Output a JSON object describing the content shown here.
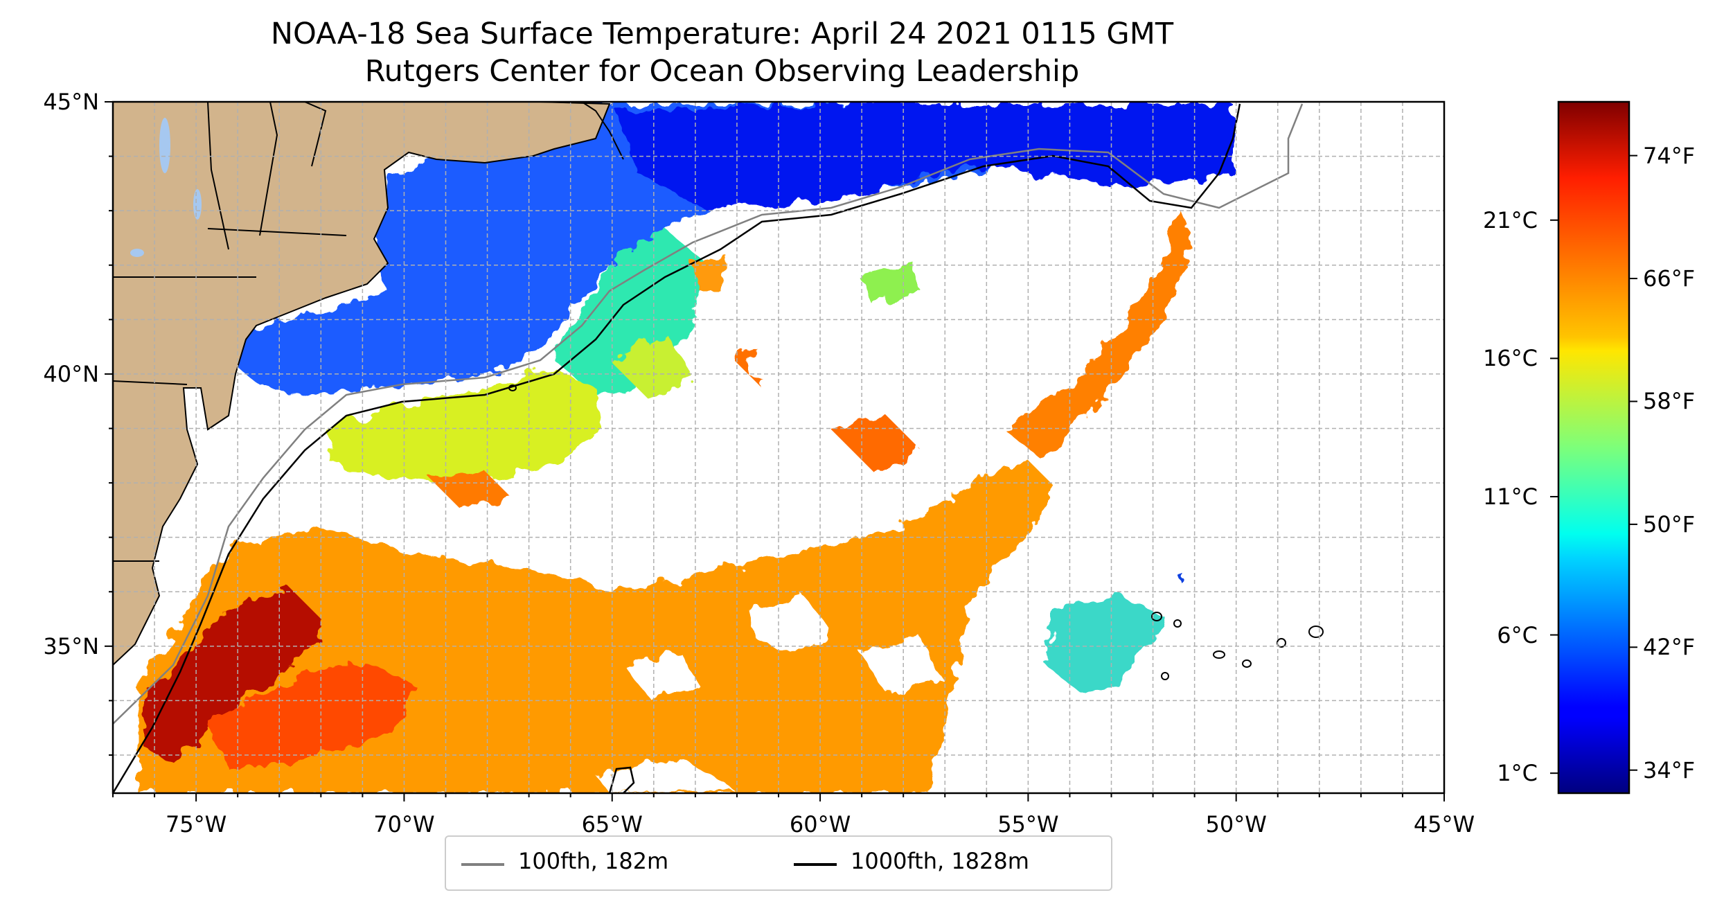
{
  "title": {
    "line1": "NOAA-18 Sea Surface Temperature: April 24 2021 0115 GMT",
    "line2": "Rutgers Center for Ocean Observing Leadership"
  },
  "map": {
    "lon_range": [
      -77,
      -45
    ],
    "lat_range": [
      32.3,
      45
    ],
    "lat_ticks": [
      {
        "value": 45,
        "label": "45°N"
      },
      {
        "value": 40,
        "label": "40°N"
      },
      {
        "value": 35,
        "label": "35°N"
      }
    ],
    "lon_ticks": [
      {
        "value": -75,
        "label": "75°W"
      },
      {
        "value": -70,
        "label": "70°W"
      },
      {
        "value": -65,
        "label": "65°W"
      },
      {
        "value": -60,
        "label": "60°W"
      },
      {
        "value": -55,
        "label": "55°W"
      },
      {
        "value": -50,
        "label": "50°W"
      },
      {
        "value": -45,
        "label": "45°W"
      }
    ],
    "gridlines": true,
    "land_color": "#d2b48c",
    "missing_data_color": "#ffffff"
  },
  "colorbar": {
    "colormap": "jet",
    "range_f": [
      32.5,
      77.5
    ],
    "fahrenheit_labels": [
      "74°F",
      "66°F",
      "58°F",
      "50°F",
      "42°F",
      "34°F"
    ],
    "fahrenheit_values": [
      74,
      66,
      58,
      50,
      42,
      34
    ],
    "celsius_labels": [
      "21°C",
      "16°C",
      "11°C",
      "6°C",
      "1°C"
    ],
    "celsius_values": [
      21,
      16,
      11,
      6,
      1
    ]
  },
  "legend": {
    "items": [
      {
        "label": "100fth, 182m",
        "color": "#808080"
      },
      {
        "label": "1000fth, 1828m",
        "color": "#000000"
      }
    ]
  }
}
